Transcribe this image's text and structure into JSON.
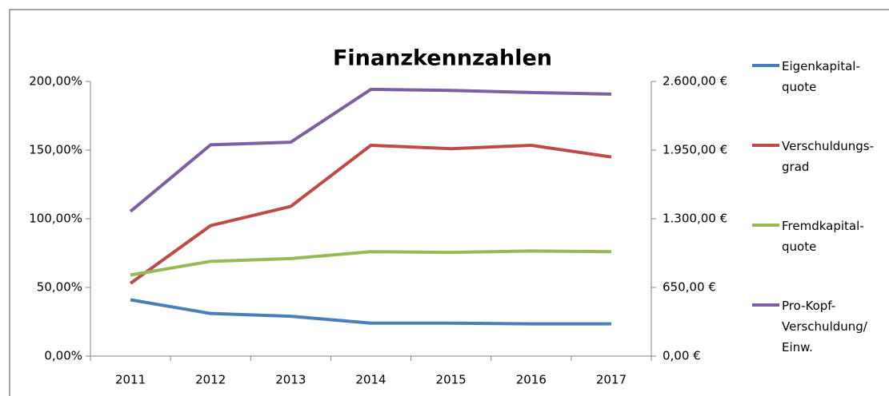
{
  "chart_data": {
    "type": "line",
    "title": "Finanzkennzahlen",
    "categories": [
      "2011",
      "2012",
      "2013",
      "2014",
      "2015",
      "2016",
      "2017"
    ],
    "series": [
      {
        "name": "Eigenkapital-quote",
        "color": "#4a7ebb",
        "values": [
          41,
          31,
          29,
          24,
          24,
          23.5,
          23.5
        ]
      },
      {
        "name": "Verschuldungs-grad",
        "color": "#be4b48",
        "values": [
          53,
          95,
          109,
          153.5,
          151,
          153.5,
          145
        ]
      },
      {
        "name": "Fremdkapital-quote",
        "color": "#98b954",
        "values": [
          59,
          69,
          71,
          76,
          75.5,
          76.5,
          76
        ]
      },
      {
        "name": "Pro-Kopf-Verschuldung/ Einw.",
        "color": "#7d60a0",
        "axis": "y2",
        "values": [
          1370,
          2000,
          2025,
          2525,
          2515,
          2495,
          2480
        ]
      }
    ],
    "ylim": [
      0,
      200
    ],
    "yticks": [
      {
        "value": 0,
        "label": "0,00%"
      },
      {
        "value": 50,
        "label": "50,00%"
      },
      {
        "value": 100,
        "label": "100,00%"
      },
      {
        "value": 150,
        "label": "150,00%"
      },
      {
        "value": 200,
        "label": "200,00%"
      }
    ],
    "y2lim": [
      0,
      2600
    ],
    "y2ticks": [
      {
        "value": 0,
        "label": "0,00 €"
      },
      {
        "value": 650,
        "label": "650,00 €"
      },
      {
        "value": 1300,
        "label": "1.300,00 €"
      },
      {
        "value": 1950,
        "label": "1.950,00 €"
      },
      {
        "value": 2600,
        "label": "2.600,00 €"
      }
    ],
    "grid": false,
    "legend": "right"
  }
}
